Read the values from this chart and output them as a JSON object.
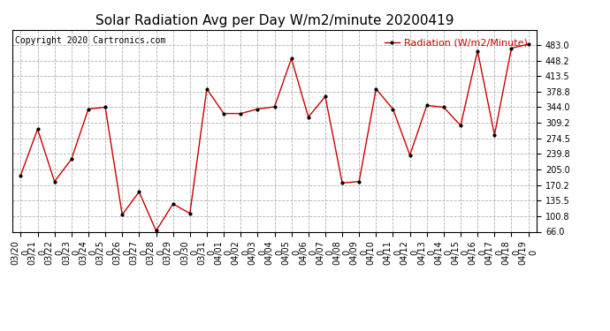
{
  "title": "Solar Radiation Avg per Day W/m2/minute 20200419",
  "copyright": "Copyright 2020 Cartronics.com",
  "legend_label": "Radiation (W/m2/Minute)",
  "dates": [
    "03/20\n0",
    "03/21\n0",
    "03/22\n0",
    "03/23\n0",
    "03/24\n0",
    "03/25\n0",
    "03/26\n0",
    "03/27\n0",
    "03/28\n0",
    "03/29\n0",
    "03/30\n0",
    "03/31\n0",
    "04/01\n0",
    "04/02\n0",
    "04/03\n0",
    "04/04\n0",
    "04/05\n0",
    "04/06\n0",
    "04/07\n0",
    "04/08\n0",
    "04/09\n0",
    "04/10\n0",
    "04/11\n0",
    "04/12\n0",
    "04/13\n0",
    "04/14\n0",
    "04/15\n0",
    "04/16\n0",
    "04/17\n0",
    "04/18\n0",
    "04/19\n0"
  ],
  "values": [
    192,
    295,
    178,
    228,
    340,
    344,
    104,
    155,
    68,
    128,
    107,
    385,
    330,
    330,
    340,
    345,
    453,
    322,
    368,
    175,
    178,
    385,
    340,
    237,
    348,
    344,
    303,
    470,
    282,
    476,
    485
  ],
  "ylim": [
    66.0,
    517
  ],
  "yticks": [
    66.0,
    100.8,
    135.5,
    170.2,
    205.0,
    239.8,
    274.5,
    309.2,
    344.0,
    378.8,
    413.5,
    448.2,
    483.0
  ],
  "line_color": "#cc0000",
  "marker_color": "#000000",
  "background_color": "#ffffff",
  "grid_color": "#b0b0b0",
  "title_fontsize": 11,
  "copyright_fontsize": 7,
  "legend_color": "#cc0000",
  "tick_label_fontsize": 7,
  "legend_fontsize": 8
}
